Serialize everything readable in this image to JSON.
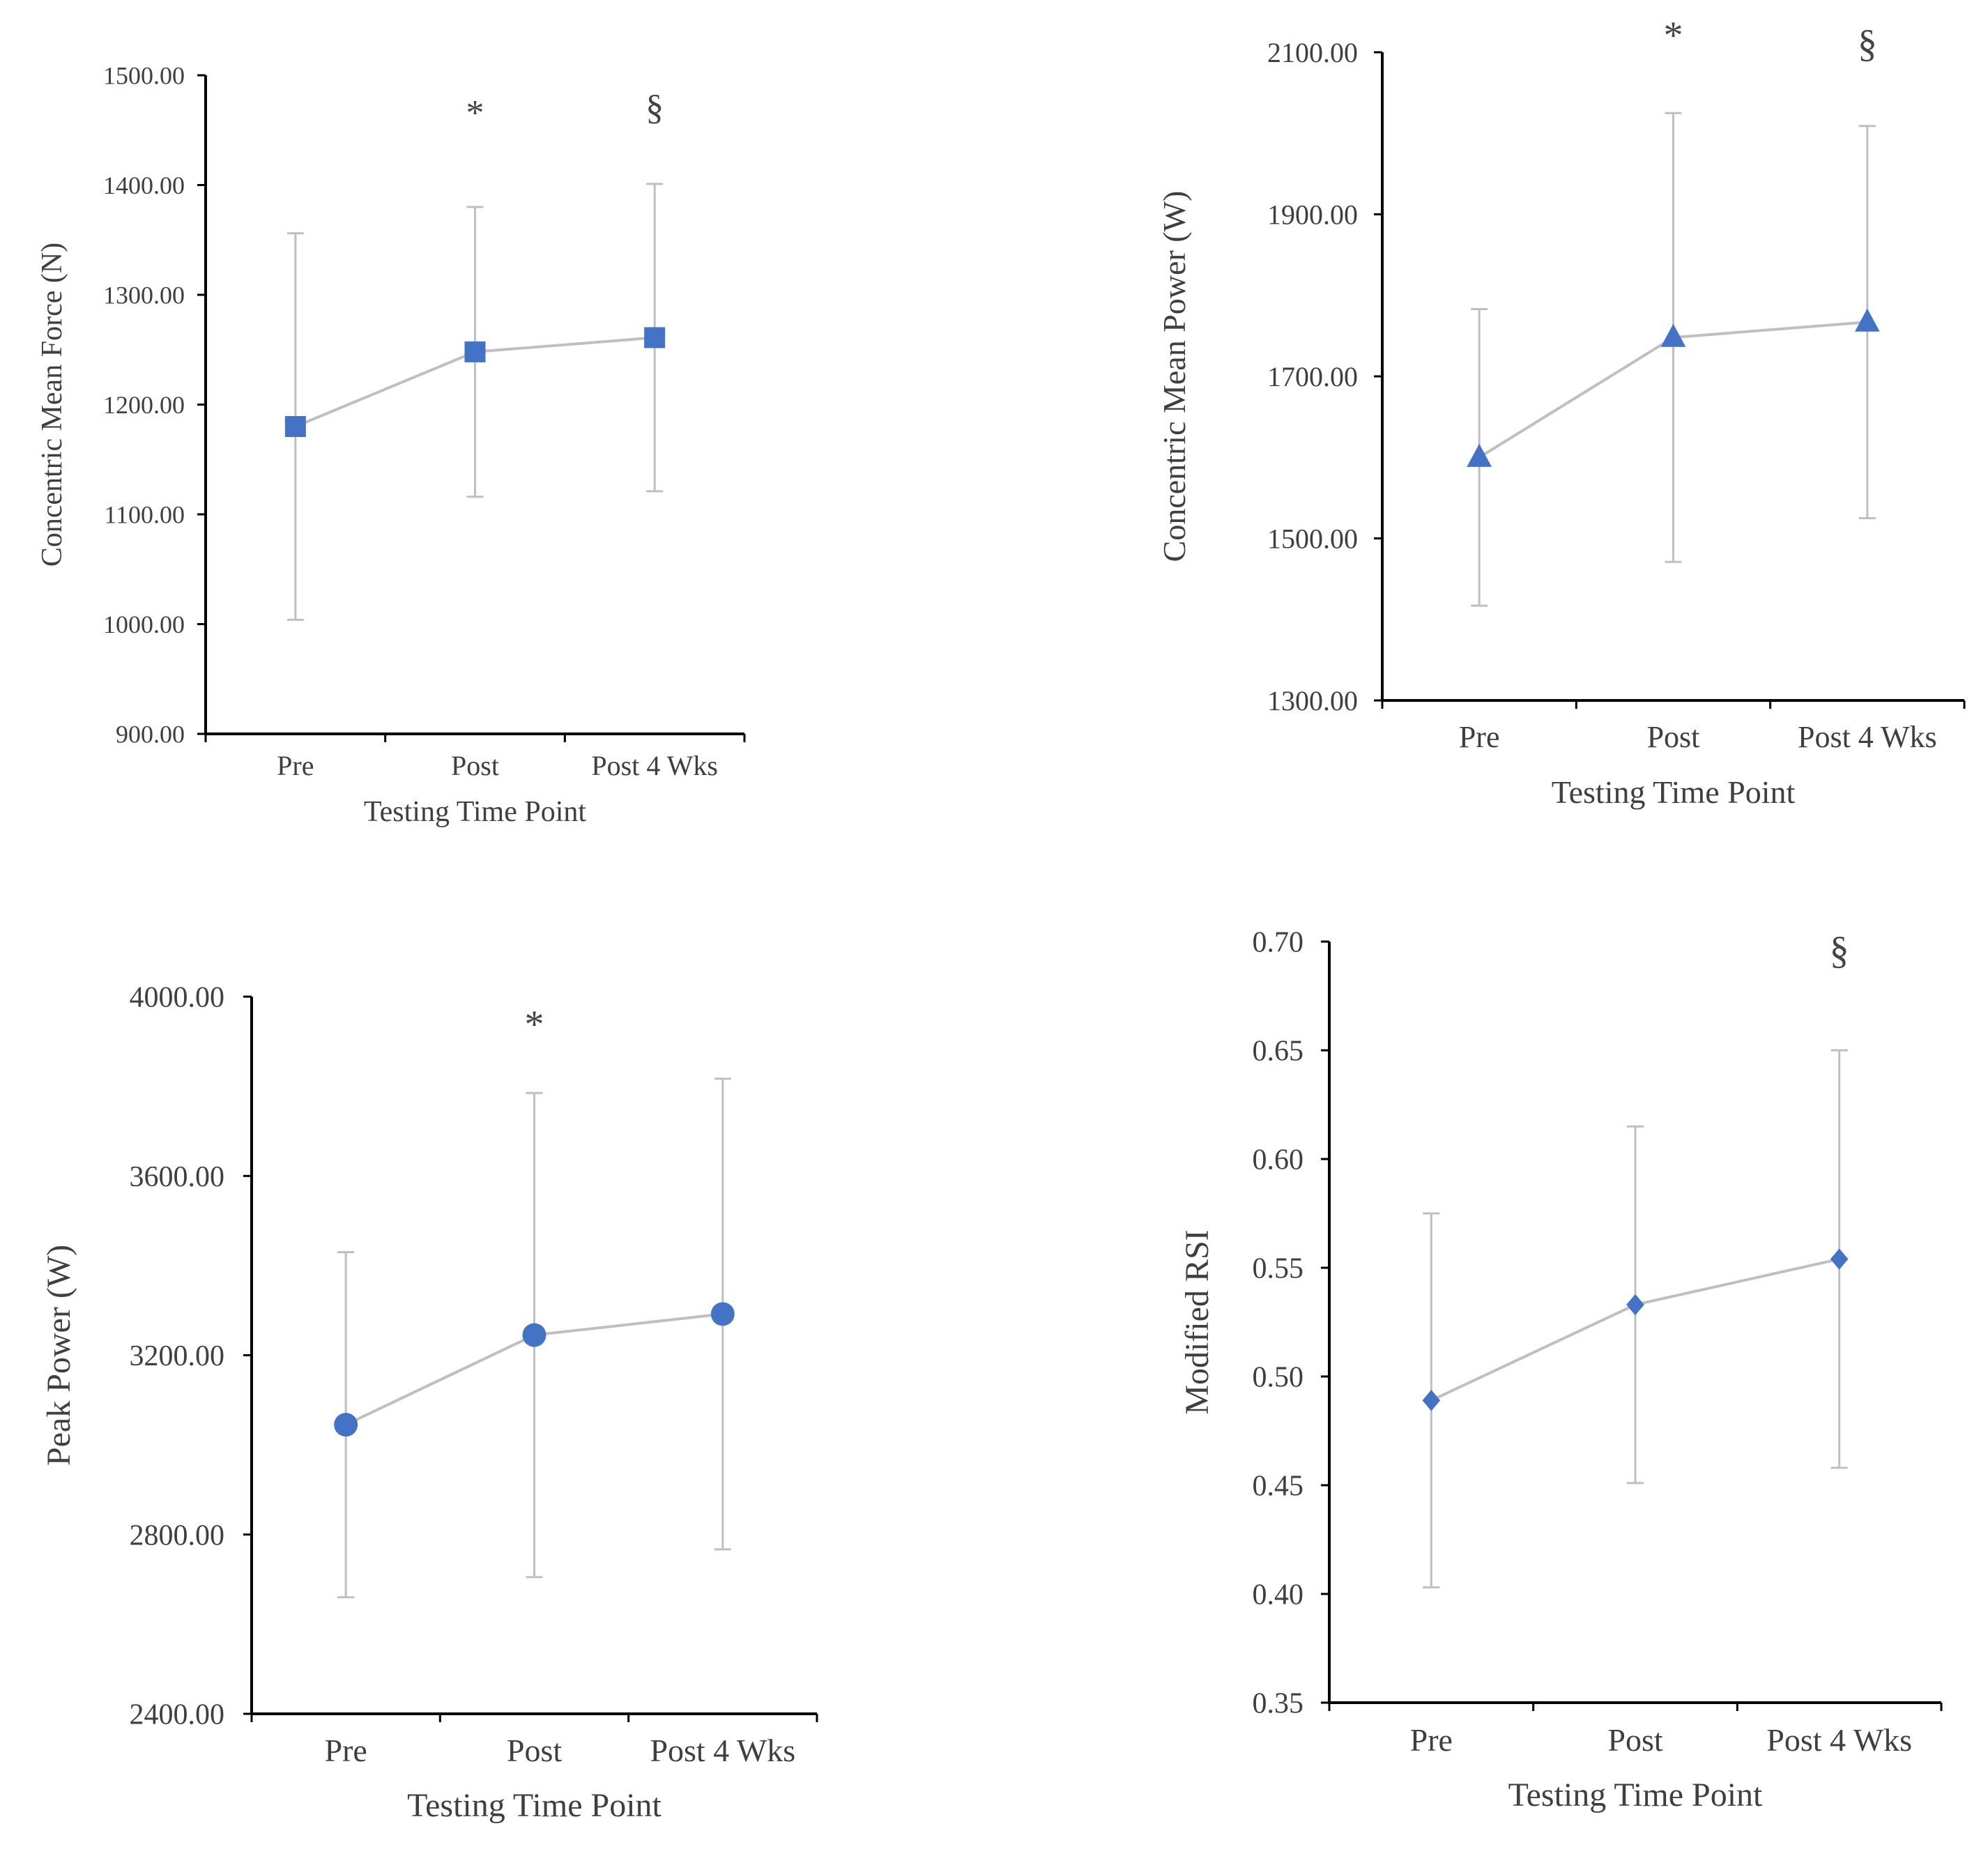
{
  "colors": {
    "marker": "#4472c4",
    "line": "#bfbfbf",
    "axis": "#000000",
    "text": "#404040"
  },
  "chart_data": [
    {
      "type": "line",
      "marker": "square",
      "categories": [
        "Pre",
        "Post",
        "Post 4 Wks"
      ],
      "series": [
        {
          "name": "Concentric Mean Force (N)",
          "values": [
            1180,
            1248,
            1261
          ],
          "error": [
            176,
            132,
            140
          ]
        }
      ],
      "xlabel": "Testing Time Point",
      "ylabel": "Concentric Mean Force (N)",
      "ylim": [
        900,
        1500
      ],
      "yticks": [
        "900.00",
        "1000.00",
        "1100.00",
        "1200.00",
        "1300.00",
        "1400.00",
        "1500.00"
      ],
      "annotations": [
        {
          "text": "*",
          "category": "Post",
          "value": 1455
        },
        {
          "text": "§",
          "category": "Post 4 Wks",
          "value": 1460
        }
      ]
    },
    {
      "type": "line",
      "marker": "triangle",
      "categories": [
        "Pre",
        "Post",
        "Post 4 Wks"
      ],
      "series": [
        {
          "name": "Concentric Mean Power (W)",
          "values": [
            1600,
            1748,
            1767
          ],
          "error": [
            183,
            277,
            242
          ]
        }
      ],
      "xlabel": "Testing Time Point",
      "ylabel": "Concentric Mean Power (W)",
      "ylim": [
        1300,
        2100
      ],
      "yticks": [
        "1300.00",
        "1500.00",
        "1700.00",
        "1900.00",
        "2100.00"
      ],
      "annotations": [
        {
          "text": "*",
          "category": "Post",
          "value": 2105
        },
        {
          "text": "§",
          "category": "Post 4 Wks",
          "value": 2095
        }
      ]
    },
    {
      "type": "line",
      "marker": "circle",
      "categories": [
        "Pre",
        "Post",
        "Post 4 Wks"
      ],
      "series": [
        {
          "name": "Peak Power (W)",
          "values": [
            3045,
            3245,
            3292
          ],
          "error": [
            385,
            540,
            525
          ]
        }
      ],
      "xlabel": "Testing Time Point",
      "ylabel": "Peak Power (W)",
      "ylim": [
        2400,
        4000
      ],
      "yticks": [
        "2400.00",
        "2800.00",
        "3200.00",
        "3600.00",
        "4000.00"
      ],
      "annotations": [
        {
          "text": "*",
          "category": "Post",
          "value": 3910
        }
      ]
    },
    {
      "type": "line",
      "marker": "diamond",
      "categories": [
        "Pre",
        "Post",
        "Post 4 Wks"
      ],
      "series": [
        {
          "name": "Modified RSI",
          "values": [
            0.489,
            0.533,
            0.554
          ],
          "error": [
            0.086,
            0.082,
            0.096
          ]
        }
      ],
      "xlabel": "Testing Time Point",
      "ylabel": "Modified RSI",
      "ylim": [
        0.35,
        0.7
      ],
      "yticks": [
        "0.35",
        "0.40",
        "0.45",
        "0.50",
        "0.55",
        "0.60",
        "0.65",
        "0.70"
      ],
      "annotations": [
        {
          "text": "§",
          "category": "Post 4 Wks",
          "value": 0.69
        }
      ]
    }
  ]
}
